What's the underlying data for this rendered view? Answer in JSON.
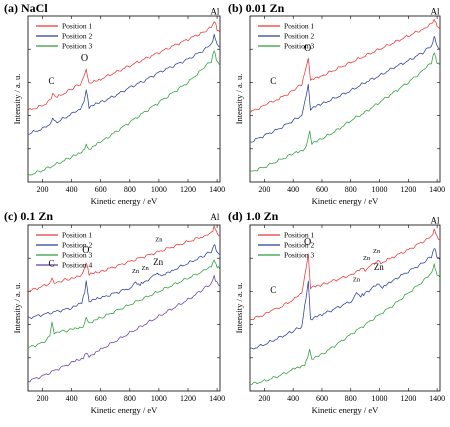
{
  "chart_data": [
    {
      "type": "line",
      "panel": "a",
      "title": "(a) NaCl",
      "xlabel": "Kinetic energy / eV",
      "ylabel": "Intensity / a. u.",
      "xlim": [
        100,
        1420
      ],
      "ylim": [
        0,
        10
      ],
      "xticks": [
        200,
        400,
        600,
        800,
        1000,
        1200,
        1400
      ],
      "xtick_labels": [
        "200",
        "400",
        "600",
        "800",
        "1000",
        "1200",
        "1400"
      ],
      "show_y_ticks": true,
      "legend_position": "top-left",
      "series": [
        {
          "name": "Position 1",
          "color": "#e8383a",
          "x": [
            100,
            200,
            250,
            270,
            300,
            400,
            460,
            485,
            500,
            520,
            600,
            700,
            800,
            900,
            1000,
            1100,
            1200,
            1300,
            1360,
            1380,
            1390,
            1400,
            1420
          ],
          "y": [
            4.3,
            4.6,
            4.9,
            5.3,
            5.1,
            5.6,
            5.9,
            6.3,
            6.8,
            5.9,
            6.2,
            6.6,
            7.0,
            7.4,
            7.8,
            8.2,
            8.6,
            9.0,
            9.3,
            9.7,
            9.5,
            9.2,
            9.0
          ]
        },
        {
          "name": "Position 2",
          "color": "#2a3f9a",
          "x": [
            100,
            200,
            250,
            270,
            300,
            400,
            460,
            485,
            500,
            520,
            600,
            700,
            800,
            900,
            1000,
            1100,
            1200,
            1300,
            1360,
            1380,
            1390,
            1400,
            1420
          ],
          "y": [
            2.9,
            3.2,
            3.5,
            3.8,
            3.6,
            4.1,
            4.4,
            4.9,
            5.6,
            4.5,
            4.8,
            5.2,
            5.7,
            6.1,
            6.6,
            7.0,
            7.4,
            7.9,
            8.3,
            8.8,
            8.6,
            8.3,
            8.1
          ]
        },
        {
          "name": "Position 3",
          "color": "#2e9e3c",
          "x": [
            100,
            200,
            300,
            400,
            480,
            500,
            520,
            600,
            700,
            800,
            900,
            1000,
            1100,
            1200,
            1300,
            1360,
            1380,
            1390,
            1400,
            1420
          ],
          "y": [
            0.4,
            0.7,
            1.1,
            1.5,
            1.9,
            2.2,
            2.0,
            2.4,
            3.0,
            3.6,
            4.2,
            4.8,
            5.4,
            6.0,
            6.8,
            7.3,
            7.9,
            7.6,
            7.3,
            7.0
          ]
        }
      ],
      "annotations": [
        {
          "text": "C",
          "x": 262,
          "y": 5.9,
          "size": "small"
        },
        {
          "text": "O",
          "x": 488,
          "y": 7.3,
          "size": "medium"
        },
        {
          "text": "Al",
          "x": 1385,
          "y": 10.1,
          "size": "small"
        }
      ]
    },
    {
      "type": "line",
      "panel": "b",
      "title": "(b) 0.01 Zn",
      "xlabel": "Kinetic energy / eV",
      "ylabel": "Intensity / a. u.",
      "xlim": [
        100,
        1420
      ],
      "ylim": [
        0,
        10
      ],
      "xticks": [
        200,
        400,
        600,
        800,
        1000,
        1200,
        1400
      ],
      "xtick_labels": [
        "200",
        "400",
        "600",
        "800",
        "1000",
        "1200",
        "1400"
      ],
      "show_y_ticks": true,
      "legend_position": "top-left",
      "series": [
        {
          "name": "Position 1",
          "color": "#e8383a",
          "x": [
            100,
            200,
            260,
            300,
            400,
            460,
            490,
            505,
            520,
            600,
            700,
            800,
            900,
            1000,
            1100,
            1200,
            1300,
            1360,
            1380,
            1390,
            1400,
            1420
          ],
          "y": [
            4.2,
            4.6,
            4.9,
            5.0,
            5.5,
            5.9,
            6.9,
            7.4,
            6.1,
            6.4,
            6.8,
            7.2,
            7.6,
            8.0,
            8.4,
            8.8,
            9.2,
            9.5,
            9.8,
            9.6,
            9.4,
            9.2
          ]
        },
        {
          "name": "Position 2",
          "color": "#2a3f9a",
          "x": [
            100,
            200,
            300,
            400,
            460,
            490,
            505,
            520,
            600,
            700,
            800,
            900,
            1000,
            1100,
            1200,
            1300,
            1360,
            1380,
            1390,
            1400,
            1420
          ],
          "y": [
            2.4,
            2.8,
            3.2,
            3.7,
            4.0,
            5.2,
            5.9,
            4.4,
            4.7,
            5.1,
            5.5,
            6.0,
            6.4,
            6.9,
            7.3,
            7.8,
            8.2,
            8.7,
            8.5,
            8.2,
            8.0
          ]
        },
        {
          "name": "Position 3",
          "color": "#2e9e3c",
          "x": [
            100,
            200,
            300,
            400,
            480,
            500,
            515,
            530,
            600,
            700,
            800,
            900,
            1000,
            1100,
            1200,
            1300,
            1360,
            1380,
            1390,
            1400,
            1420
          ],
          "y": [
            0.6,
            0.9,
            1.3,
            1.7,
            2.0,
            2.4,
            3.1,
            2.3,
            2.6,
            3.1,
            3.7,
            4.2,
            4.8,
            5.4,
            6.0,
            6.7,
            7.2,
            7.8,
            7.5,
            7.2,
            7.0
          ]
        }
      ],
      "annotations": [
        {
          "text": "C",
          "x": 262,
          "y": 5.9,
          "size": "small"
        },
        {
          "text": "O",
          "x": 500,
          "y": 7.9,
          "size": "medium"
        },
        {
          "text": "Al",
          "x": 1385,
          "y": 10.1,
          "size": "small"
        }
      ]
    },
    {
      "type": "line",
      "panel": "c",
      "title": "(c) 0.1 Zn",
      "xlabel": "Kinetic energy / eV",
      "ylabel": "Intensity / a. u.",
      "xlim": [
        100,
        1420
      ],
      "ylim": [
        0,
        10
      ],
      "xticks": [
        200,
        400,
        600,
        800,
        1000,
        1200,
        1400
      ],
      "xtick_labels": [
        "200",
        "400",
        "600",
        "800",
        "1000",
        "1200",
        "1400"
      ],
      "show_y_ticks": true,
      "legend_position": "top-left",
      "series": [
        {
          "name": "Position 1",
          "color": "#e8383a",
          "x": [
            100,
            200,
            250,
            265,
            280,
            400,
            470,
            490,
            500,
            520,
            600,
            700,
            800,
            900,
            1000,
            1100,
            1200,
            1300,
            1360,
            1380,
            1390,
            1400,
            1420
          ],
          "y": [
            6.0,
            6.3,
            6.5,
            6.9,
            6.5,
            6.8,
            7.0,
            7.4,
            7.8,
            7.0,
            7.2,
            7.5,
            7.8,
            8.1,
            8.4,
            8.7,
            9.0,
            9.3,
            9.5,
            9.9,
            9.7,
            9.5,
            9.3
          ]
        },
        {
          "name": "Position 2",
          "color": "#2a3f9a",
          "x": [
            100,
            200,
            300,
            400,
            470,
            490,
            500,
            520,
            600,
            700,
            800,
            840,
            870,
            900,
            950,
            990,
            1020,
            1100,
            1200,
            1300,
            1360,
            1380,
            1390,
            1400,
            1420
          ],
          "y": [
            4.4,
            4.6,
            4.8,
            5.0,
            5.3,
            6.0,
            6.6,
            5.4,
            5.6,
            5.9,
            6.2,
            6.5,
            6.4,
            6.6,
            6.8,
            7.1,
            6.9,
            7.3,
            7.7,
            8.1,
            8.4,
            8.8,
            8.6,
            8.4,
            8.2
          ]
        },
        {
          "name": "Position 3",
          "color": "#2e9e3c",
          "x": [
            100,
            200,
            250,
            265,
            280,
            400,
            480,
            500,
            520,
            600,
            700,
            800,
            900,
            1000,
            1100,
            1200,
            1300,
            1360,
            1380,
            1390,
            1400,
            1420
          ],
          "y": [
            2.6,
            2.9,
            3.3,
            4.1,
            3.5,
            3.7,
            3.9,
            4.4,
            4.1,
            4.4,
            4.8,
            5.2,
            5.6,
            6.0,
            6.4,
            6.8,
            7.2,
            7.5,
            7.9,
            7.7,
            7.5,
            7.3
          ]
        },
        {
          "name": "Position 4",
          "color": "#6a3f9e",
          "x": [
            100,
            200,
            300,
            400,
            480,
            500,
            520,
            600,
            700,
            800,
            900,
            1000,
            1100,
            1200,
            1300,
            1360,
            1380,
            1390,
            1400,
            1420
          ],
          "y": [
            0.6,
            0.9,
            1.3,
            1.7,
            2.0,
            2.3,
            2.1,
            2.5,
            3.0,
            3.5,
            4.0,
            4.5,
            5.0,
            5.5,
            6.1,
            6.5,
            6.9,
            6.7,
            6.5,
            6.3
          ]
        }
      ],
      "annotations": [
        {
          "text": "C",
          "x": 262,
          "y": 7.5,
          "size": "small"
        },
        {
          "text": "O",
          "x": 498,
          "y": 8.3,
          "size": "medium"
        },
        {
          "text": "Zn",
          "x": 840,
          "y": 7.1,
          "size": "tiny"
        },
        {
          "text": "Zn",
          "x": 905,
          "y": 7.3,
          "size": "tiny"
        },
        {
          "text": "Zn",
          "x": 995,
          "y": 7.6,
          "size": "small"
        },
        {
          "text": "Zn",
          "x": 1000,
          "y": 9.0,
          "size": "tiny"
        },
        {
          "text": "Al",
          "x": 1385,
          "y": 10.3,
          "size": "small"
        }
      ]
    },
    {
      "type": "line",
      "panel": "d",
      "title": "(d) 1.0 Zn",
      "xlabel": "Kinetic energy / eV",
      "ylabel": "Intensity / a. u.",
      "xlim": [
        100,
        1420
      ],
      "ylim": [
        0,
        10
      ],
      "xticks": [
        200,
        400,
        600,
        800,
        1000,
        1200,
        1400
      ],
      "xtick_labels": [
        "200",
        "400",
        "600",
        "800",
        "1000",
        "1200",
        "1400"
      ],
      "show_y_ticks": true,
      "legend_position": "top-left",
      "series": [
        {
          "name": "Position 1",
          "color": "#e8383a",
          "x": [
            100,
            200,
            260,
            300,
            400,
            460,
            490,
            505,
            520,
            600,
            700,
            800,
            870,
            900,
            950,
            990,
            1010,
            1100,
            1200,
            1300,
            1360,
            1380,
            1390,
            1400,
            1420
          ],
          "y": [
            4.3,
            4.6,
            4.9,
            5.0,
            5.5,
            5.9,
            7.4,
            8.3,
            6.2,
            6.4,
            6.7,
            7.0,
            7.4,
            7.3,
            7.6,
            7.9,
            7.7,
            8.1,
            8.5,
            9.0,
            9.3,
            9.7,
            9.5,
            9.3,
            9.1
          ]
        },
        {
          "name": "Position 2",
          "color": "#2a3f9a",
          "x": [
            100,
            200,
            300,
            400,
            460,
            490,
            505,
            520,
            600,
            700,
            800,
            840,
            870,
            900,
            950,
            995,
            1020,
            1100,
            1200,
            1300,
            1360,
            1380,
            1390,
            1400,
            1420
          ],
          "y": [
            2.5,
            2.8,
            3.2,
            3.6,
            3.9,
            5.7,
            6.6,
            4.3,
            4.6,
            5.0,
            5.4,
            5.9,
            5.7,
            5.9,
            6.2,
            6.5,
            6.2,
            6.7,
            7.2,
            7.7,
            8.1,
            8.6,
            8.4,
            8.1,
            7.9
          ]
        },
        {
          "name": "Position 3",
          "color": "#2e9e3c",
          "x": [
            100,
            200,
            300,
            400,
            480,
            500,
            515,
            530,
            600,
            700,
            800,
            900,
            1000,
            1100,
            1200,
            1300,
            1360,
            1380,
            1390,
            1400,
            1420
          ],
          "y": [
            0.4,
            0.6,
            0.9,
            1.3,
            1.6,
            2.0,
            2.6,
            1.9,
            2.2,
            2.8,
            3.4,
            4.0,
            4.6,
            5.2,
            5.9,
            6.6,
            7.1,
            7.6,
            7.3,
            7.0,
            6.8
          ]
        }
      ],
      "annotations": [
        {
          "text": "C",
          "x": 262,
          "y": 5.9,
          "size": "small"
        },
        {
          "text": "O",
          "x": 500,
          "y": 8.8,
          "size": "medium"
        },
        {
          "text": "Zn",
          "x": 840,
          "y": 6.6,
          "size": "tiny"
        },
        {
          "text": "Zn",
          "x": 910,
          "y": 7.9,
          "size": "tiny"
        },
        {
          "text": "Zn",
          "x": 995,
          "y": 7.3,
          "size": "small"
        },
        {
          "text": "Zn",
          "x": 980,
          "y": 8.3,
          "size": "tiny"
        },
        {
          "text": "Al",
          "x": 1385,
          "y": 10.1,
          "size": "small"
        }
      ]
    }
  ]
}
